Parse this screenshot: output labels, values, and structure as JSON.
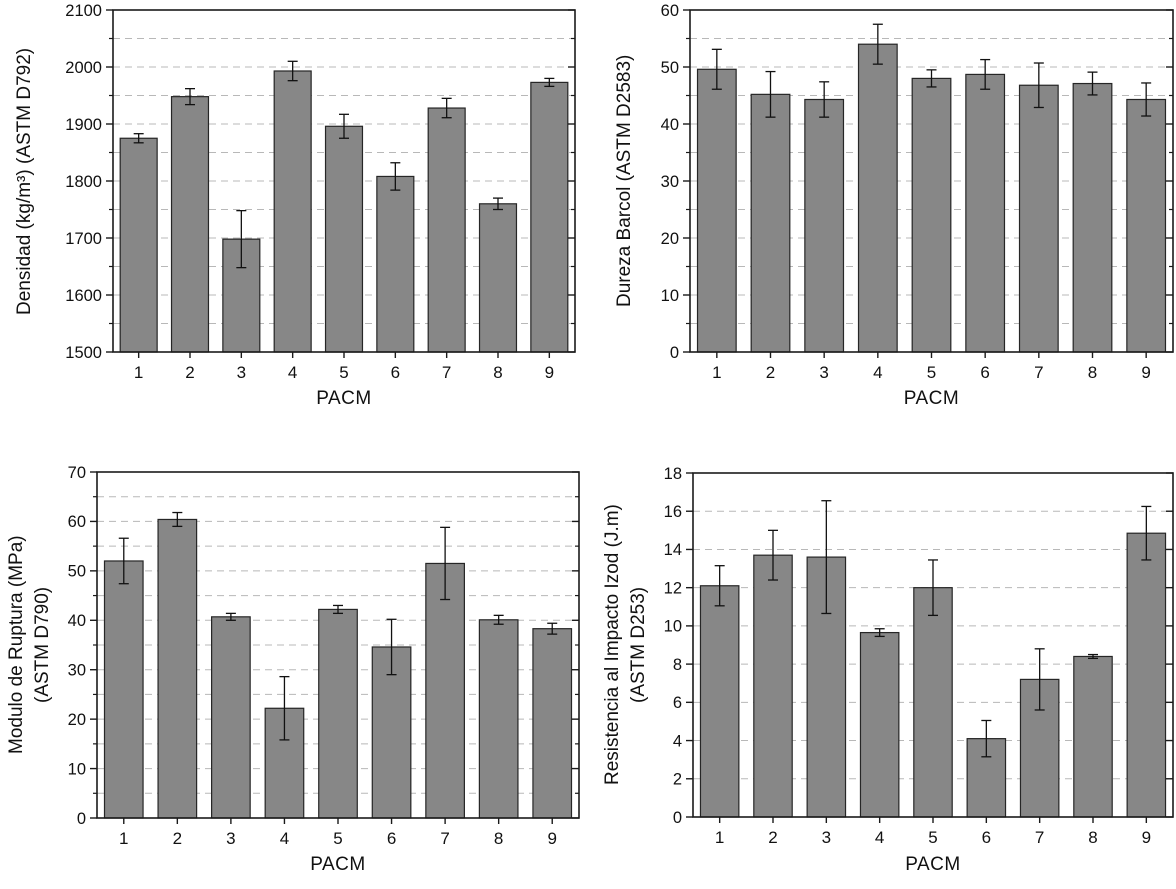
{
  "page": {
    "background": "#ffffff"
  },
  "colors": {
    "bar_fill": "#878787",
    "bar_stroke": "#262626",
    "grid": "#b8b8b8",
    "axis": "#1a1a1a",
    "error_bar": "#111111",
    "text": "#111111"
  },
  "chart_data": [
    {
      "type": "bar",
      "ylabel_lines": [
        "Densidad (kg/m³) (ASTM D792)"
      ],
      "xlabel": "PACM",
      "categories": [
        "1",
        "2",
        "3",
        "4",
        "5",
        "6",
        "7",
        "8",
        "9"
      ],
      "values": [
        1875,
        1948,
        1698,
        1993,
        1896,
        1808,
        1928,
        1760,
        1973
      ],
      "errors": [
        8,
        14,
        50,
        17,
        21,
        24,
        17,
        10,
        7
      ],
      "ylim": [
        1500,
        2100
      ],
      "ytick_major": 100,
      "ytick_minor": 50,
      "grid_step": 50,
      "grid": "dashed",
      "legend": "none"
    },
    {
      "type": "bar",
      "ylabel_lines": [
        "Dureza Barcol (ASTM D2583)"
      ],
      "xlabel": "PACM",
      "categories": [
        "1",
        "2",
        "3",
        "4",
        "5",
        "6",
        "7",
        "8",
        "9"
      ],
      "values": [
        49.6,
        45.2,
        44.3,
        54.0,
        48.0,
        48.7,
        46.8,
        47.1,
        44.3
      ],
      "errors": [
        3.5,
        4.0,
        3.1,
        3.5,
        1.5,
        2.6,
        3.9,
        2.0,
        2.9
      ],
      "ylim": [
        0,
        60
      ],
      "ytick_major": 10,
      "ytick_minor": 5,
      "grid_step": 5,
      "grid": "dashed",
      "legend": "none"
    },
    {
      "type": "bar",
      "ylabel_lines": [
        "Modulo de Ruptura (MPa)",
        "(ASTM D790)"
      ],
      "xlabel": "PACM",
      "categories": [
        "1",
        "2",
        "3",
        "4",
        "5",
        "6",
        "7",
        "8",
        "9"
      ],
      "values": [
        52.0,
        60.4,
        40.7,
        22.2,
        42.2,
        34.6,
        51.5,
        40.1,
        38.3
      ],
      "errors": [
        4.6,
        1.4,
        0.7,
        6.4,
        0.8,
        5.6,
        7.3,
        0.9,
        1.1
      ],
      "ylim": [
        0,
        70
      ],
      "ytick_major": 10,
      "ytick_minor": 5,
      "grid_step": 5,
      "grid": "dashed",
      "legend": "none"
    },
    {
      "type": "bar",
      "ylabel_lines": [
        "Resistencia al Impacto Izod (J.m)",
        "(ASTM D253)"
      ],
      "xlabel": "PACM",
      "categories": [
        "1",
        "2",
        "3",
        "4",
        "5",
        "6",
        "7",
        "8",
        "9"
      ],
      "values": [
        12.1,
        13.7,
        13.6,
        9.65,
        12.0,
        4.1,
        7.2,
        8.4,
        14.85
      ],
      "errors": [
        1.05,
        1.3,
        2.95,
        0.2,
        1.45,
        0.95,
        1.6,
        0.1,
        1.4
      ],
      "ylim": [
        0,
        18
      ],
      "ytick_major": 2,
      "ytick_minor": null,
      "grid_step": 2,
      "grid": "dashed",
      "legend": "none"
    }
  ]
}
